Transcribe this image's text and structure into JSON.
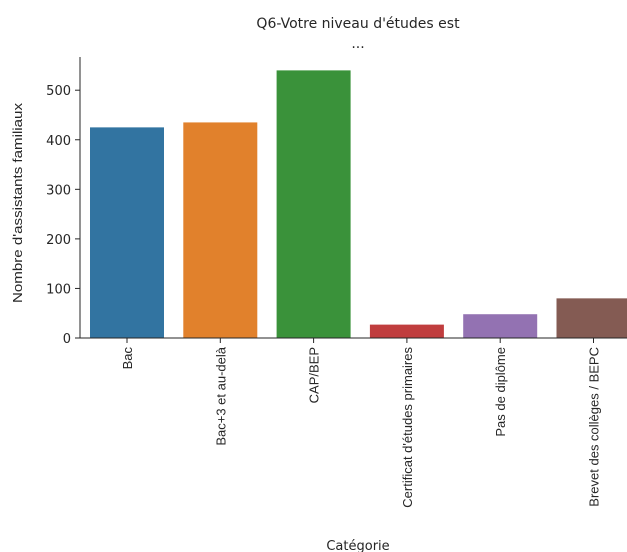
{
  "chart_data": {
    "type": "bar",
    "title": "Q6-Votre niveau d'études est",
    "subtitle": "...",
    "xlabel": "Catégorie",
    "ylabel": "Nombre d'assistants familiaux",
    "categories": [
      "Bac",
      "Bac+3 et au-delà",
      "CAP/BEP",
      "Certificat d'études primaires",
      "Pas de diplôme",
      "Brevet des collèges / BEPC"
    ],
    "values": [
      425,
      435,
      540,
      27,
      48,
      80
    ],
    "colors": [
      "#3274a1",
      "#e1812c",
      "#3a923a",
      "#c03d3e",
      "#9372b2",
      "#845b53"
    ],
    "yticks": [
      0,
      100,
      200,
      300,
      400,
      500
    ],
    "ylim": [
      0,
      567
    ],
    "grid": false,
    "legend": "none"
  }
}
